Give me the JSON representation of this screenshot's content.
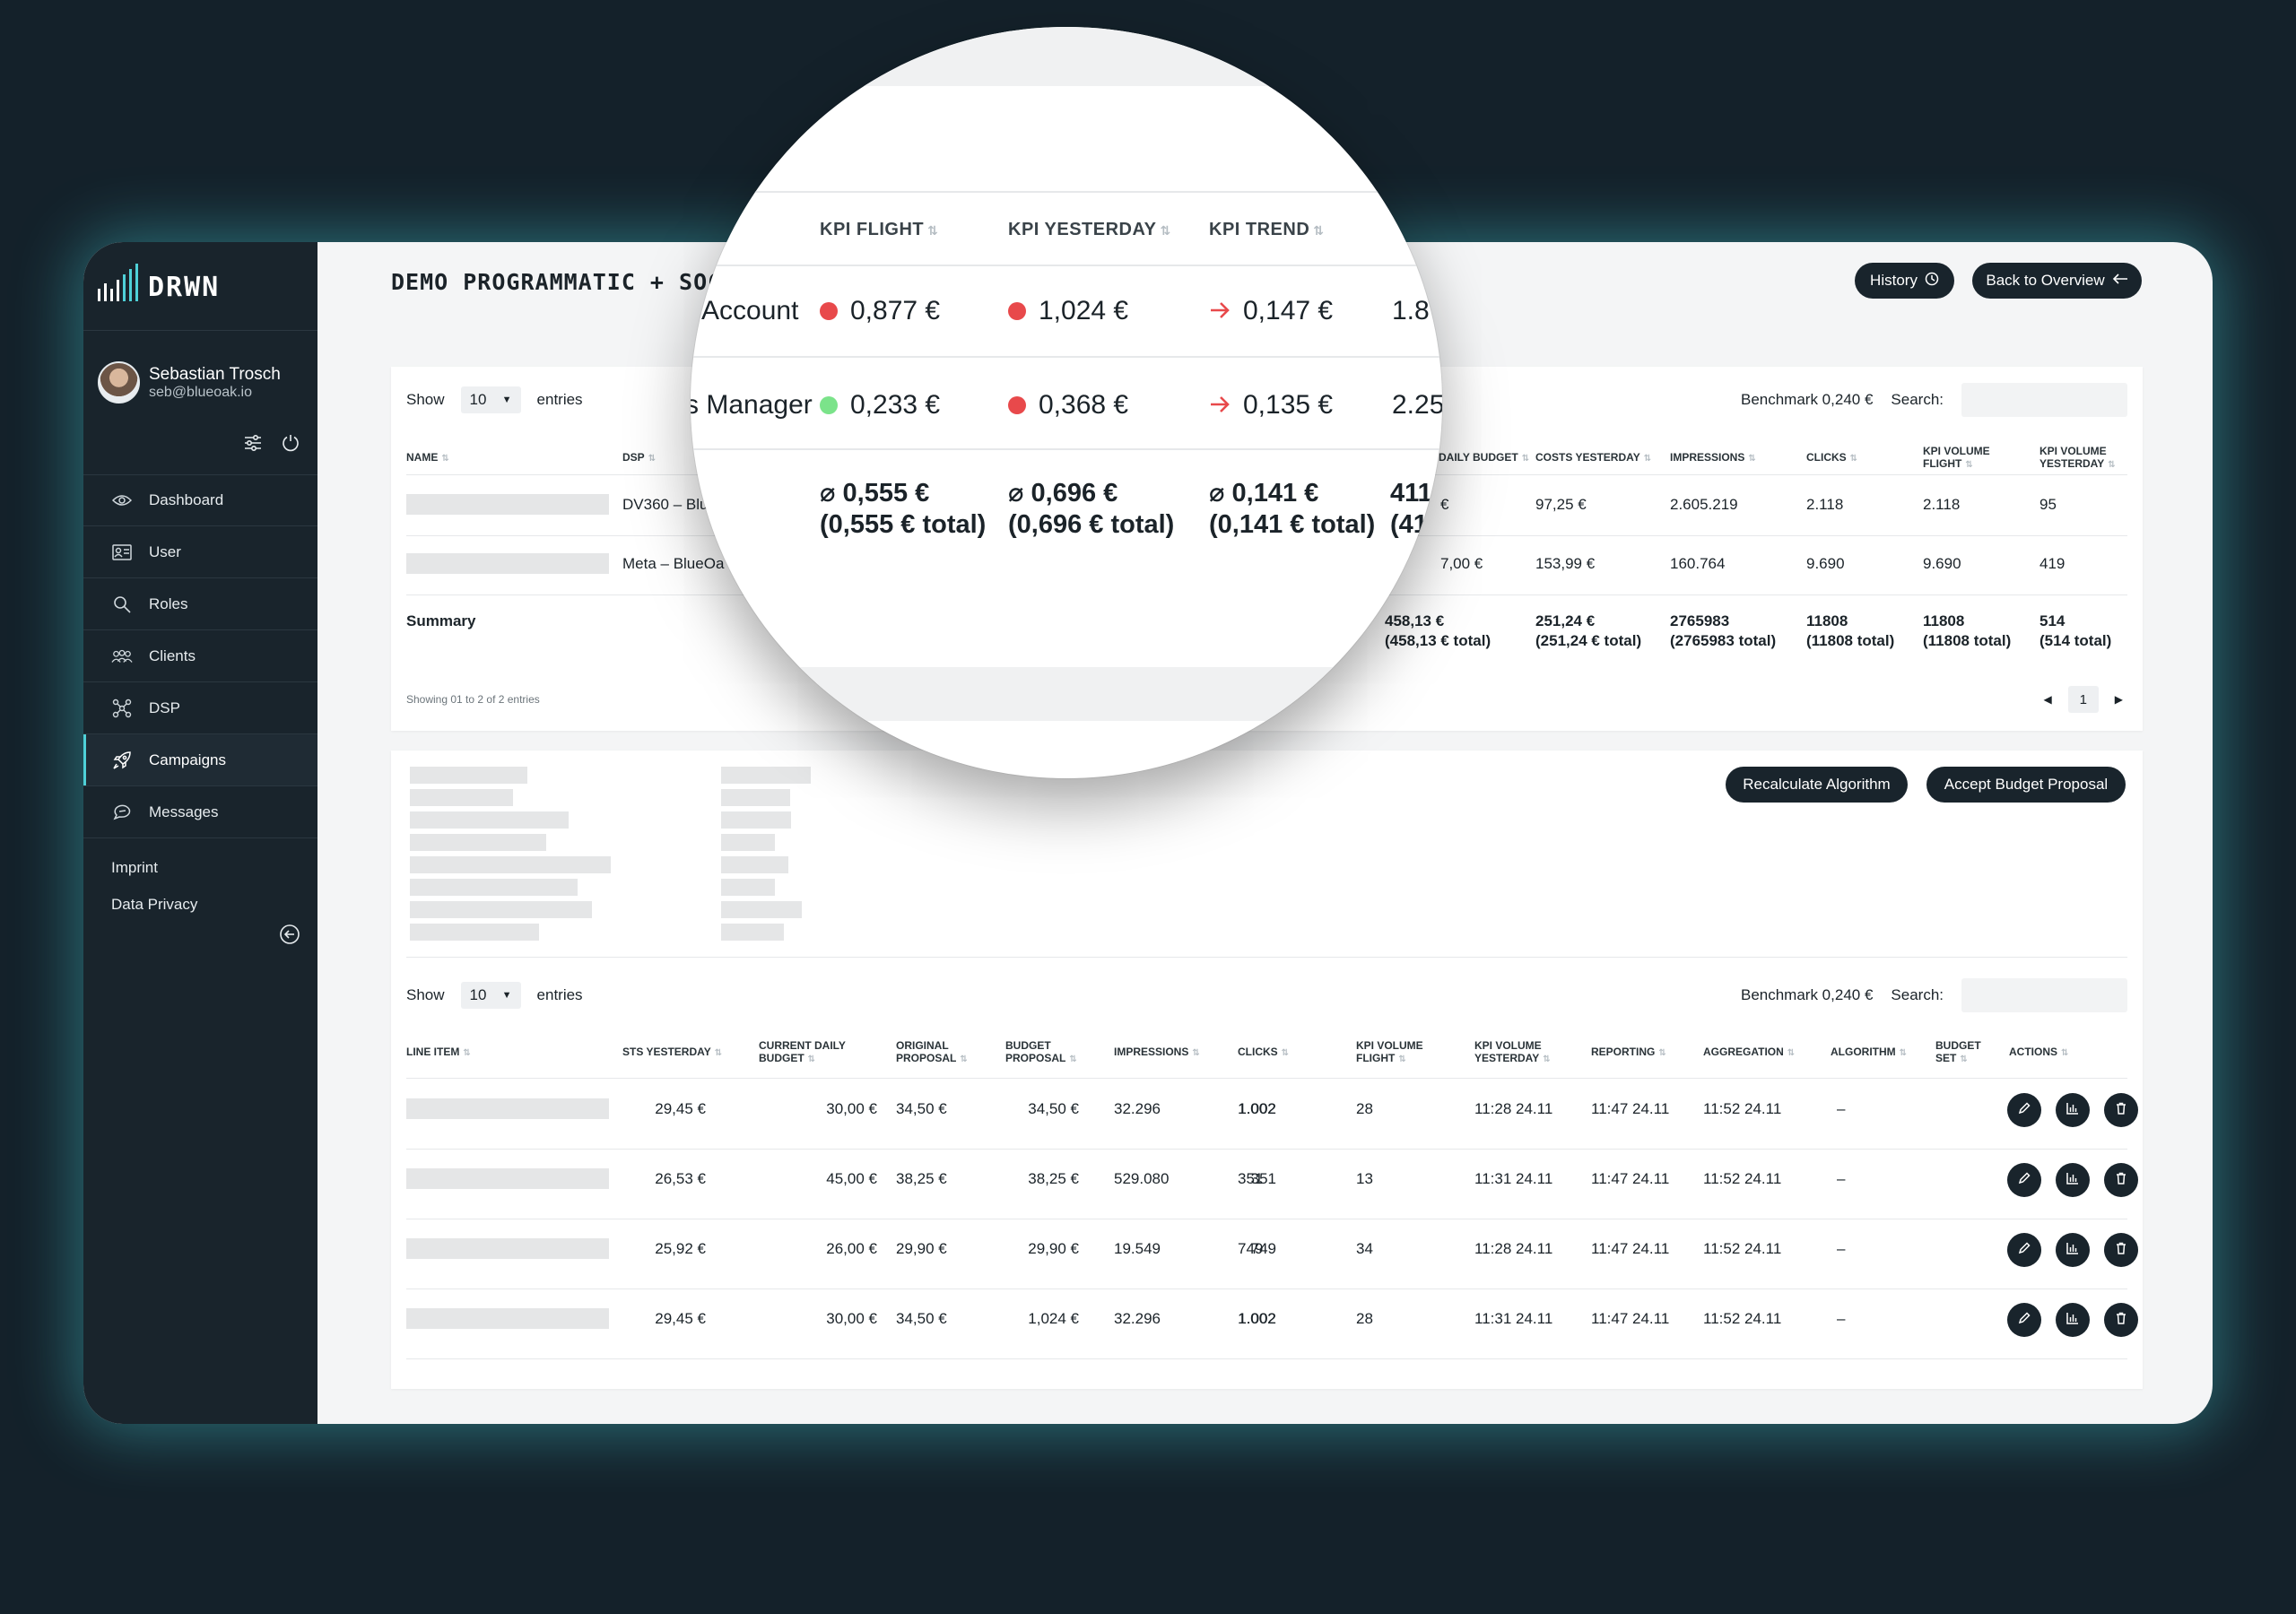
{
  "app": {
    "logo_text": "DRWN"
  },
  "user": {
    "name": "Sebastian Trosch",
    "email": "seb@blueoak.io"
  },
  "sidebar": {
    "items": [
      {
        "label": "Dashboard",
        "icon": "eye-icon"
      },
      {
        "label": "User",
        "icon": "id-card-icon"
      },
      {
        "label": "Roles",
        "icon": "search-icon"
      },
      {
        "label": "Clients",
        "icon": "users-icon"
      },
      {
        "label": "DSP",
        "icon": "network-icon"
      },
      {
        "label": "Campaigns",
        "icon": "rocket-icon"
      },
      {
        "label": "Messages",
        "icon": "message-icon"
      }
    ],
    "links": [
      "Imprint",
      "Data Privacy"
    ]
  },
  "header": {
    "title": "DEMO PROGRAMMATIC + SOCIAL",
    "history_label": "History",
    "back_label": "Back to Overview"
  },
  "table1": {
    "show_label": "Show",
    "entries_value": "10",
    "entries_label": "entries",
    "benchmark": "Benchmark 0,240 €",
    "search_label": "Search:",
    "columns": [
      "NAME",
      "DSP",
      "DAILY BUDGET",
      "COSTS YESTERDAY",
      "IMPRESSIONS",
      "CLICKS",
      "KPI VOLUME FLIGHT",
      "KPI VOLUME YESTERDAY"
    ],
    "rows": [
      {
        "dsp": "DV360 – Blu",
        "daily_budget": "€",
        "costs_yesterday": "97,25 €",
        "impressions": "2.605.219",
        "clicks": "2.118",
        "kpi_volume_flight": "2.118",
        "kpi_volume_yesterday": "95"
      },
      {
        "dsp": "Meta – BlueOa",
        "daily_budget": "7,00 €",
        "costs_yesterday": "153,99 €",
        "impressions": "160.764",
        "clicks": "9.690",
        "kpi_volume_flight": "9.690",
        "kpi_volume_yesterday": "419"
      }
    ],
    "summary": {
      "label": "Summary",
      "daily_budget": [
        "458,13 €",
        "(458,13 € total)"
      ],
      "costs_yesterday": [
        "251,24 €",
        "(251,24 € total)"
      ],
      "impressions": [
        "2765983",
        "(2765983 total)"
      ],
      "clicks": [
        "11808",
        "(11808 total)"
      ],
      "kpi_volume_flight": [
        "11808",
        "(11808 total)"
      ],
      "kpi_volume_yesterday": [
        "514",
        "(514 total)"
      ]
    },
    "footer": "Showing 01 to 2 of 2 entries",
    "page": "1"
  },
  "magnifier": {
    "columns": [
      "KPI FLIGHT",
      "KPI YESTERDAY",
      "KPI TREND"
    ],
    "rows": [
      {
        "name": "Account",
        "kpi_flight": "0,877 €",
        "kpi_flight_status": "red",
        "kpi_yesterday": "1,024 €",
        "kpi_yesterday_status": "red",
        "kpi_trend": "0,147 €",
        "next": "1.8"
      },
      {
        "name": "s Manager",
        "kpi_flight": "0,233 €",
        "kpi_flight_status": "green",
        "kpi_yesterday": "0,368 €",
        "kpi_yesterday_status": "red",
        "kpi_trend": "0,135 €",
        "next": "2.25"
      }
    ],
    "summary": {
      "kpi_flight": [
        "⌀ 0,555 €",
        "(0,555 € total)"
      ],
      "kpi_yesterday": [
        "⌀ 0,696 €",
        "(0,696 € total)"
      ],
      "kpi_trend": [
        "⌀ 0,141 €",
        "(0,141 € total)"
      ],
      "next": [
        "411",
        "(41"
      ]
    },
    "colors": {
      "red": "#e8494b",
      "green": "#7be38a"
    }
  },
  "table2": {
    "recalculate_label": "Recalculate Algorithm",
    "accept_label": "Accept Budget Proposal",
    "show_label": "Show",
    "entries_value": "10",
    "entries_label": "entries",
    "benchmark": "Benchmark 0,240 €",
    "search_label": "Search:",
    "columns": [
      [
        "LINE ITEM"
      ],
      [
        "STS YESTERDAY"
      ],
      [
        "CURRENT DAILY",
        "BUDGET"
      ],
      [
        "ORIGINAL",
        "PROPOSAL"
      ],
      [
        "BUDGET",
        "PROPOSAL"
      ],
      [
        "IMPRESSIONS"
      ],
      [
        "CLICKS"
      ],
      [
        "KPI VOLUME",
        "FLIGHT"
      ],
      [
        "KPI VOLUME",
        "YESTERDAY"
      ],
      [
        "REPORTING"
      ],
      [
        "AGGREGATION"
      ],
      [
        "ALGORITHM"
      ],
      [
        "BUDGET",
        "SET"
      ],
      [
        "ACTIONS"
      ]
    ],
    "rows": [
      {
        "sts_yesterday": "29,45 €",
        "current_daily_budget": "30,00 €",
        "original_proposal": "34,50 €",
        "budget_proposal": "34,50 €",
        "impressions": "32.296",
        "clicks": "1.002",
        "kpi_volume_flight": "1.002",
        "kpi_volume_yesterday": "28",
        "reporting": "11:28 24.11",
        "aggregation": "11:47 24.11",
        "algorithm": "11:52 24.11",
        "budget_set": "–"
      },
      {
        "sts_yesterday": "26,53 €",
        "current_daily_budget": "45,00 €",
        "original_proposal": "38,25 €",
        "budget_proposal": "38,25 €",
        "impressions": "529.080",
        "clicks": "351",
        "kpi_volume_flight": "351",
        "kpi_volume_yesterday": "13",
        "reporting": "11:31 24.11",
        "aggregation": "11:47 24.11",
        "algorithm": "11:52 24.11",
        "budget_set": "–"
      },
      {
        "sts_yesterday": "25,92 €",
        "current_daily_budget": "26,00 €",
        "original_proposal": "29,90 €",
        "budget_proposal": "29,90 €",
        "impressions": "19.549",
        "clicks": "749",
        "kpi_volume_flight": "749",
        "kpi_volume_yesterday": "34",
        "reporting": "11:28 24.11",
        "aggregation": "11:47 24.11",
        "algorithm": "11:52 24.11",
        "budget_set": "–"
      },
      {
        "sts_yesterday": "29,45 €",
        "current_daily_budget": "30,00 €",
        "original_proposal": "34,50 €",
        "budget_proposal": "1,024 €",
        "impressions": "32.296",
        "clicks": "1.002",
        "kpi_volume_flight": "1.002",
        "kpi_volume_yesterday": "28",
        "reporting": "11:31 24.11",
        "aggregation": "11:47 24.11",
        "algorithm": "11:52 24.11",
        "budget_set": "–"
      }
    ],
    "action_icons": [
      "pencil-icon",
      "chart-icon",
      "trash-icon"
    ]
  },
  "theme": {
    "accent": "#4fd1d8",
    "dark": "#19242c",
    "background": "#14212a"
  }
}
